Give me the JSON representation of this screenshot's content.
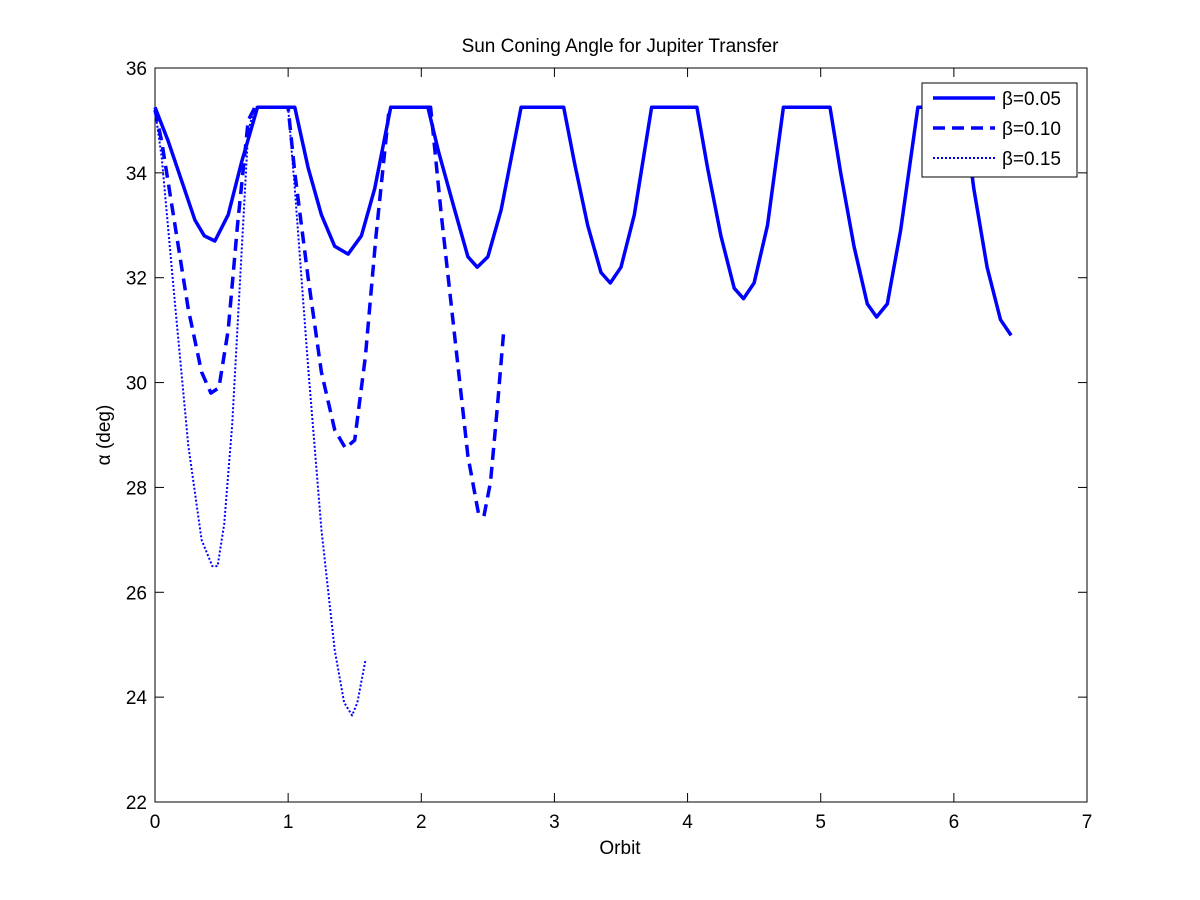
{
  "chart_data": {
    "type": "line",
    "title": "Sun Coning Angle for Jupiter Transfer",
    "xlabel": "Orbit",
    "ylabel": "α (deg)",
    "xlim": [
      0,
      7
    ],
    "ylim": [
      22,
      36
    ],
    "xticks": [
      "0",
      "1",
      "2",
      "3",
      "4",
      "5",
      "6",
      "7"
    ],
    "yticks": [
      "22",
      "24",
      "26",
      "28",
      "30",
      "32",
      "34",
      "36"
    ],
    "grid": false,
    "legend_position": "top-right",
    "line_color": "#0000ff",
    "series": [
      {
        "name": "β=0.05",
        "style": "solid",
        "x": [
          0,
          0.1,
          0.2,
          0.3,
          0.37,
          0.45,
          0.55,
          0.65,
          0.77,
          1.0,
          1.05,
          1.15,
          1.25,
          1.35,
          1.45,
          1.55,
          1.65,
          1.77,
          2.05,
          2.13,
          2.25,
          2.35,
          2.42,
          2.5,
          2.6,
          2.75,
          3.07,
          3.15,
          3.25,
          3.35,
          3.42,
          3.5,
          3.6,
          3.73,
          4.07,
          4.15,
          4.25,
          4.35,
          4.42,
          4.5,
          4.6,
          4.72,
          5.07,
          5.15,
          5.25,
          5.35,
          5.42,
          5.5,
          5.6,
          5.73,
          6.07,
          6.15,
          6.25,
          6.35,
          6.43
        ],
        "y": [
          35.25,
          34.6,
          33.85,
          33.1,
          32.8,
          32.7,
          33.2,
          34.2,
          35.25,
          35.25,
          35.25,
          34.1,
          33.2,
          32.6,
          32.45,
          32.8,
          33.7,
          35.25,
          35.25,
          34.4,
          33.3,
          32.4,
          32.2,
          32.4,
          33.3,
          35.25,
          35.25,
          34.2,
          33.0,
          32.1,
          31.9,
          32.2,
          33.2,
          35.25,
          35.25,
          34.1,
          32.8,
          31.8,
          31.6,
          31.9,
          33.0,
          35.25,
          35.25,
          34.0,
          32.6,
          31.5,
          31.25,
          31.5,
          32.9,
          35.25,
          35.25,
          33.7,
          32.2,
          31.2,
          30.9
        ]
      },
      {
        "name": "β=0.10",
        "style": "dashed",
        "x": [
          0,
          0.05,
          0.15,
          0.25,
          0.35,
          0.42,
          0.48,
          0.55,
          0.62,
          0.7,
          0.75,
          0.8,
          1.0,
          1.05,
          1.15,
          1.25,
          1.35,
          1.43,
          1.5,
          1.58,
          1.66,
          1.76,
          2.07,
          2.15,
          2.25,
          2.35,
          2.43,
          2.47,
          2.52,
          2.57,
          2.62
        ],
        "y": [
          35.2,
          34.6,
          33.0,
          31.4,
          30.2,
          29.8,
          29.9,
          31.0,
          33.0,
          35.0,
          35.25,
          35.25,
          35.25,
          34.0,
          32.0,
          30.2,
          29.1,
          28.75,
          28.9,
          30.5,
          32.8,
          35.25,
          35.25,
          33.2,
          30.9,
          28.6,
          27.5,
          27.45,
          28.1,
          29.5,
          31.0
        ]
      },
      {
        "name": "β=0.15",
        "style": "dotted",
        "x": [
          0,
          0.05,
          0.15,
          0.25,
          0.35,
          0.43,
          0.47,
          0.52,
          0.58,
          0.64,
          0.7,
          0.75,
          0.82,
          1.0,
          1.05,
          1.15,
          1.25,
          1.35,
          1.42,
          1.48,
          1.52,
          1.55,
          1.58
        ],
        "y": [
          35.2,
          34.3,
          31.5,
          28.8,
          27.0,
          26.5,
          26.5,
          27.3,
          29.2,
          32.0,
          34.8,
          35.25,
          35.25,
          35.25,
          33.7,
          30.3,
          27.2,
          24.9,
          23.9,
          23.65,
          23.9,
          24.3,
          24.7
        ]
      }
    ]
  }
}
